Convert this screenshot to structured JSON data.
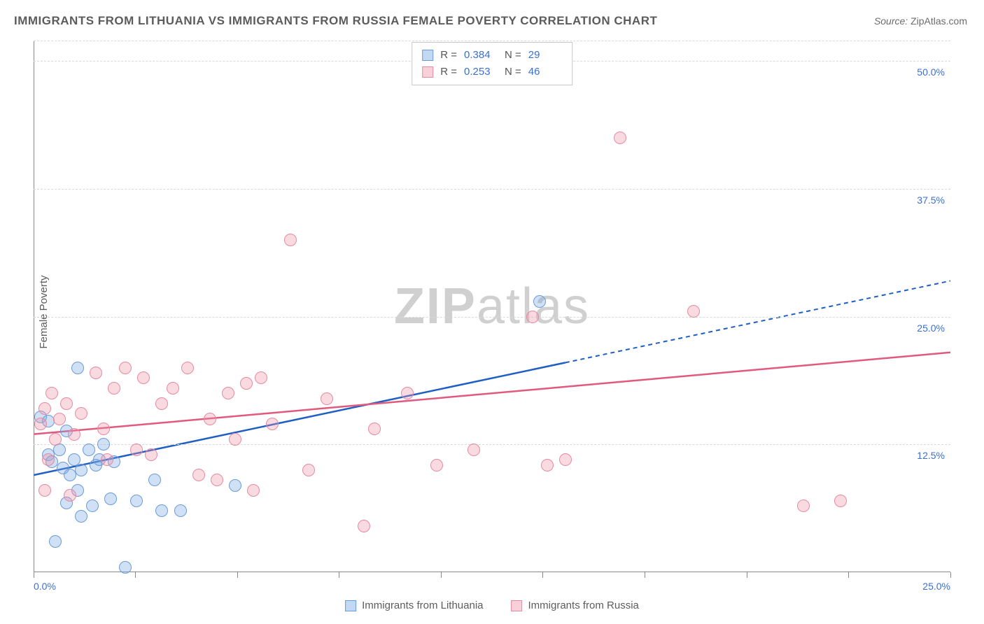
{
  "title": "IMMIGRANTS FROM LITHUANIA VS IMMIGRANTS FROM RUSSIA FEMALE POVERTY CORRELATION CHART",
  "source_label": "Source:",
  "source_value": "ZipAtlas.com",
  "y_axis_label": "Female Poverty",
  "watermark_a": "ZIP",
  "watermark_b": "atlas",
  "chart": {
    "type": "scatter",
    "background_color": "#ffffff",
    "grid_color": "#d9d9d9",
    "axis_color": "#888888",
    "tick_label_color": "#3b6fd6",
    "label_color": "#5c5c5c",
    "title_color": "#5c5c5c",
    "title_fontsize": 17,
    "label_fontsize": 15,
    "tick_fontsize": 14,
    "xlim": [
      0,
      25
    ],
    "ylim": [
      0,
      52
    ],
    "y_ticks": [
      12.5,
      25.0,
      37.5,
      50.0
    ],
    "y_tick_labels": [
      "12.5%",
      "25.0%",
      "37.5%",
      "50.0%"
    ],
    "x_ticks": [
      0,
      2.77,
      5.55,
      8.33,
      11.11,
      13.88,
      16.66,
      19.44,
      22.22,
      25
    ],
    "x_tick_labels_shown": {
      "0": "0.0%",
      "25": "25.0%"
    },
    "series": [
      {
        "name": "Immigrants from Lithuania",
        "marker_fill": "rgba(120,170,230,0.35)",
        "marker_stroke": "#6a9bd8",
        "line_color": "#1f5fc4",
        "line_dash_color": "#1f5fc4",
        "marker_radius": 9,
        "trend": {
          "x1": 0,
          "y1": 9.5,
          "x2_solid": 14.5,
          "y2_solid": 20.5,
          "x2": 25,
          "y2": 28.5
        },
        "points": [
          [
            0.2,
            15.2
          ],
          [
            0.4,
            11.5
          ],
          [
            0.4,
            14.8
          ],
          [
            0.5,
            10.8
          ],
          [
            0.6,
            3.0
          ],
          [
            0.7,
            12.0
          ],
          [
            0.8,
            10.2
          ],
          [
            0.9,
            6.8
          ],
          [
            0.9,
            13.8
          ],
          [
            1.0,
            9.5
          ],
          [
            1.1,
            11.0
          ],
          [
            1.2,
            8.0
          ],
          [
            1.2,
            20.0
          ],
          [
            1.3,
            5.5
          ],
          [
            1.3,
            10.0
          ],
          [
            1.5,
            12.0
          ],
          [
            1.6,
            6.5
          ],
          [
            1.7,
            10.5
          ],
          [
            1.8,
            11.0
          ],
          [
            1.9,
            12.5
          ],
          [
            2.1,
            7.2
          ],
          [
            2.2,
            10.8
          ],
          [
            2.5,
            0.5
          ],
          [
            2.8,
            7.0
          ],
          [
            3.3,
            9.0
          ],
          [
            3.5,
            6.0
          ],
          [
            4.0,
            6.0
          ],
          [
            5.5,
            8.5
          ],
          [
            13.8,
            26.5
          ]
        ]
      },
      {
        "name": "Immigrants from Russia",
        "marker_fill": "rgba(240,150,170,0.35)",
        "marker_stroke": "#e58aa0",
        "line_color": "#e05a7e",
        "marker_radius": 9,
        "trend": {
          "x1": 0,
          "y1": 13.5,
          "x2": 25,
          "y2": 21.5
        },
        "points": [
          [
            0.2,
            14.5
          ],
          [
            0.3,
            16.0
          ],
          [
            0.4,
            11.0
          ],
          [
            0.5,
            17.5
          ],
          [
            0.6,
            13.0
          ],
          [
            0.7,
            15.0
          ],
          [
            0.9,
            16.5
          ],
          [
            1.1,
            13.5
          ],
          [
            1.3,
            15.5
          ],
          [
            1.7,
            19.5
          ],
          [
            1.9,
            14.0
          ],
          [
            2.2,
            18.0
          ],
          [
            2.5,
            20.0
          ],
          [
            2.8,
            12.0
          ],
          [
            3.0,
            19.0
          ],
          [
            3.2,
            11.5
          ],
          [
            3.5,
            16.5
          ],
          [
            3.8,
            18.0
          ],
          [
            4.2,
            20.0
          ],
          [
            4.5,
            9.5
          ],
          [
            4.8,
            15.0
          ],
          [
            5.0,
            9.0
          ],
          [
            5.3,
            17.5
          ],
          [
            5.5,
            13.0
          ],
          [
            5.8,
            18.5
          ],
          [
            6.0,
            8.0
          ],
          [
            6.2,
            19.0
          ],
          [
            6.5,
            14.5
          ],
          [
            7.0,
            32.5
          ],
          [
            7.5,
            10.0
          ],
          [
            8.0,
            17.0
          ],
          [
            9.0,
            4.5
          ],
          [
            9.3,
            14.0
          ],
          [
            10.2,
            17.5
          ],
          [
            11.0,
            10.5
          ],
          [
            12.0,
            12.0
          ],
          [
            13.6,
            25.0
          ],
          [
            14.0,
            10.5
          ],
          [
            14.5,
            11.0
          ],
          [
            16.0,
            42.5
          ],
          [
            18.0,
            25.5
          ],
          [
            21.0,
            6.5
          ],
          [
            22.0,
            7.0
          ],
          [
            0.3,
            8.0
          ],
          [
            1.0,
            7.5
          ],
          [
            2.0,
            11.0
          ]
        ]
      }
    ]
  },
  "stats_legend": [
    {
      "swatch_fill": "rgba(120,170,230,0.45)",
      "swatch_border": "#6a9bd8",
      "r": "0.384",
      "n": "29"
    },
    {
      "swatch_fill": "rgba(240,150,170,0.45)",
      "swatch_border": "#e58aa0",
      "r": "0.253",
      "n": "46"
    }
  ],
  "bottom_legend": [
    {
      "swatch_fill": "rgba(120,170,230,0.45)",
      "swatch_border": "#6a9bd8",
      "label": "Immigrants from Lithuania"
    },
    {
      "swatch_fill": "rgba(240,150,170,0.45)",
      "swatch_border": "#e58aa0",
      "label": "Immigrants from Russia"
    }
  ],
  "stats_labels": {
    "r": "R =",
    "n": "N ="
  }
}
